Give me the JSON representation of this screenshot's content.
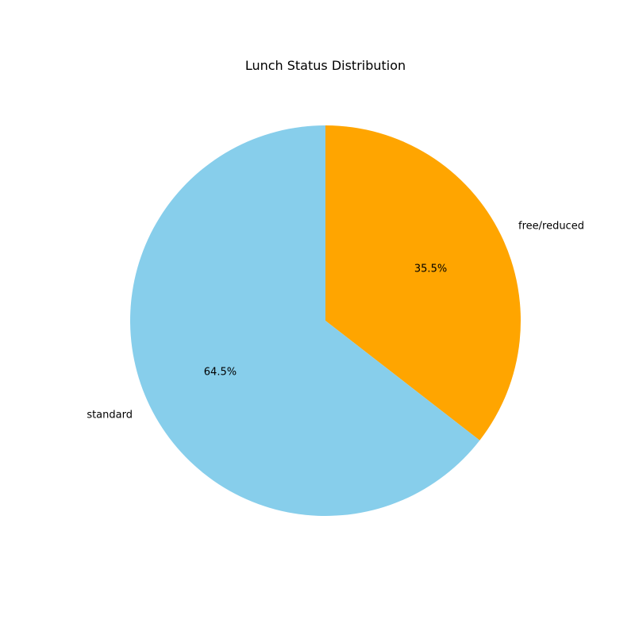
{
  "chart_data": {
    "type": "pie",
    "title": "Lunch Status Distribution",
    "categories": [
      "free/reduced",
      "standard"
    ],
    "values": [
      35.5,
      64.5
    ],
    "percent_labels": [
      "35.5%",
      "64.5%"
    ],
    "colors": [
      "#FFA500",
      "#87CEEB"
    ],
    "start_angle_deg": 90,
    "direction": "clockwise"
  }
}
